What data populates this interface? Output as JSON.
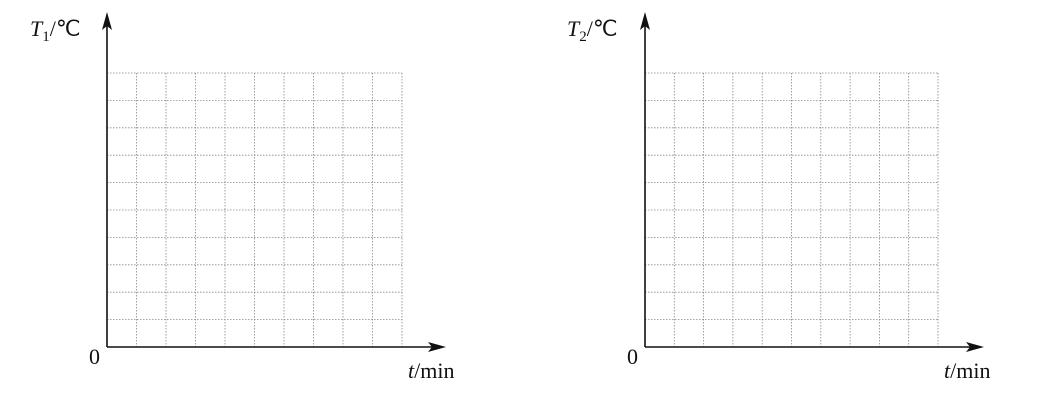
{
  "plots": [
    {
      "y_label": {
        "var": "T",
        "sub": "1",
        "unit": "/℃"
      },
      "origin": "0",
      "x_label": {
        "var": "t",
        "unit": "/min"
      }
    },
    {
      "y_label": {
        "var": "T",
        "sub": "2",
        "unit": "/℃"
      },
      "origin": "0",
      "x_label": {
        "var": "t",
        "unit": "/min"
      }
    }
  ]
}
